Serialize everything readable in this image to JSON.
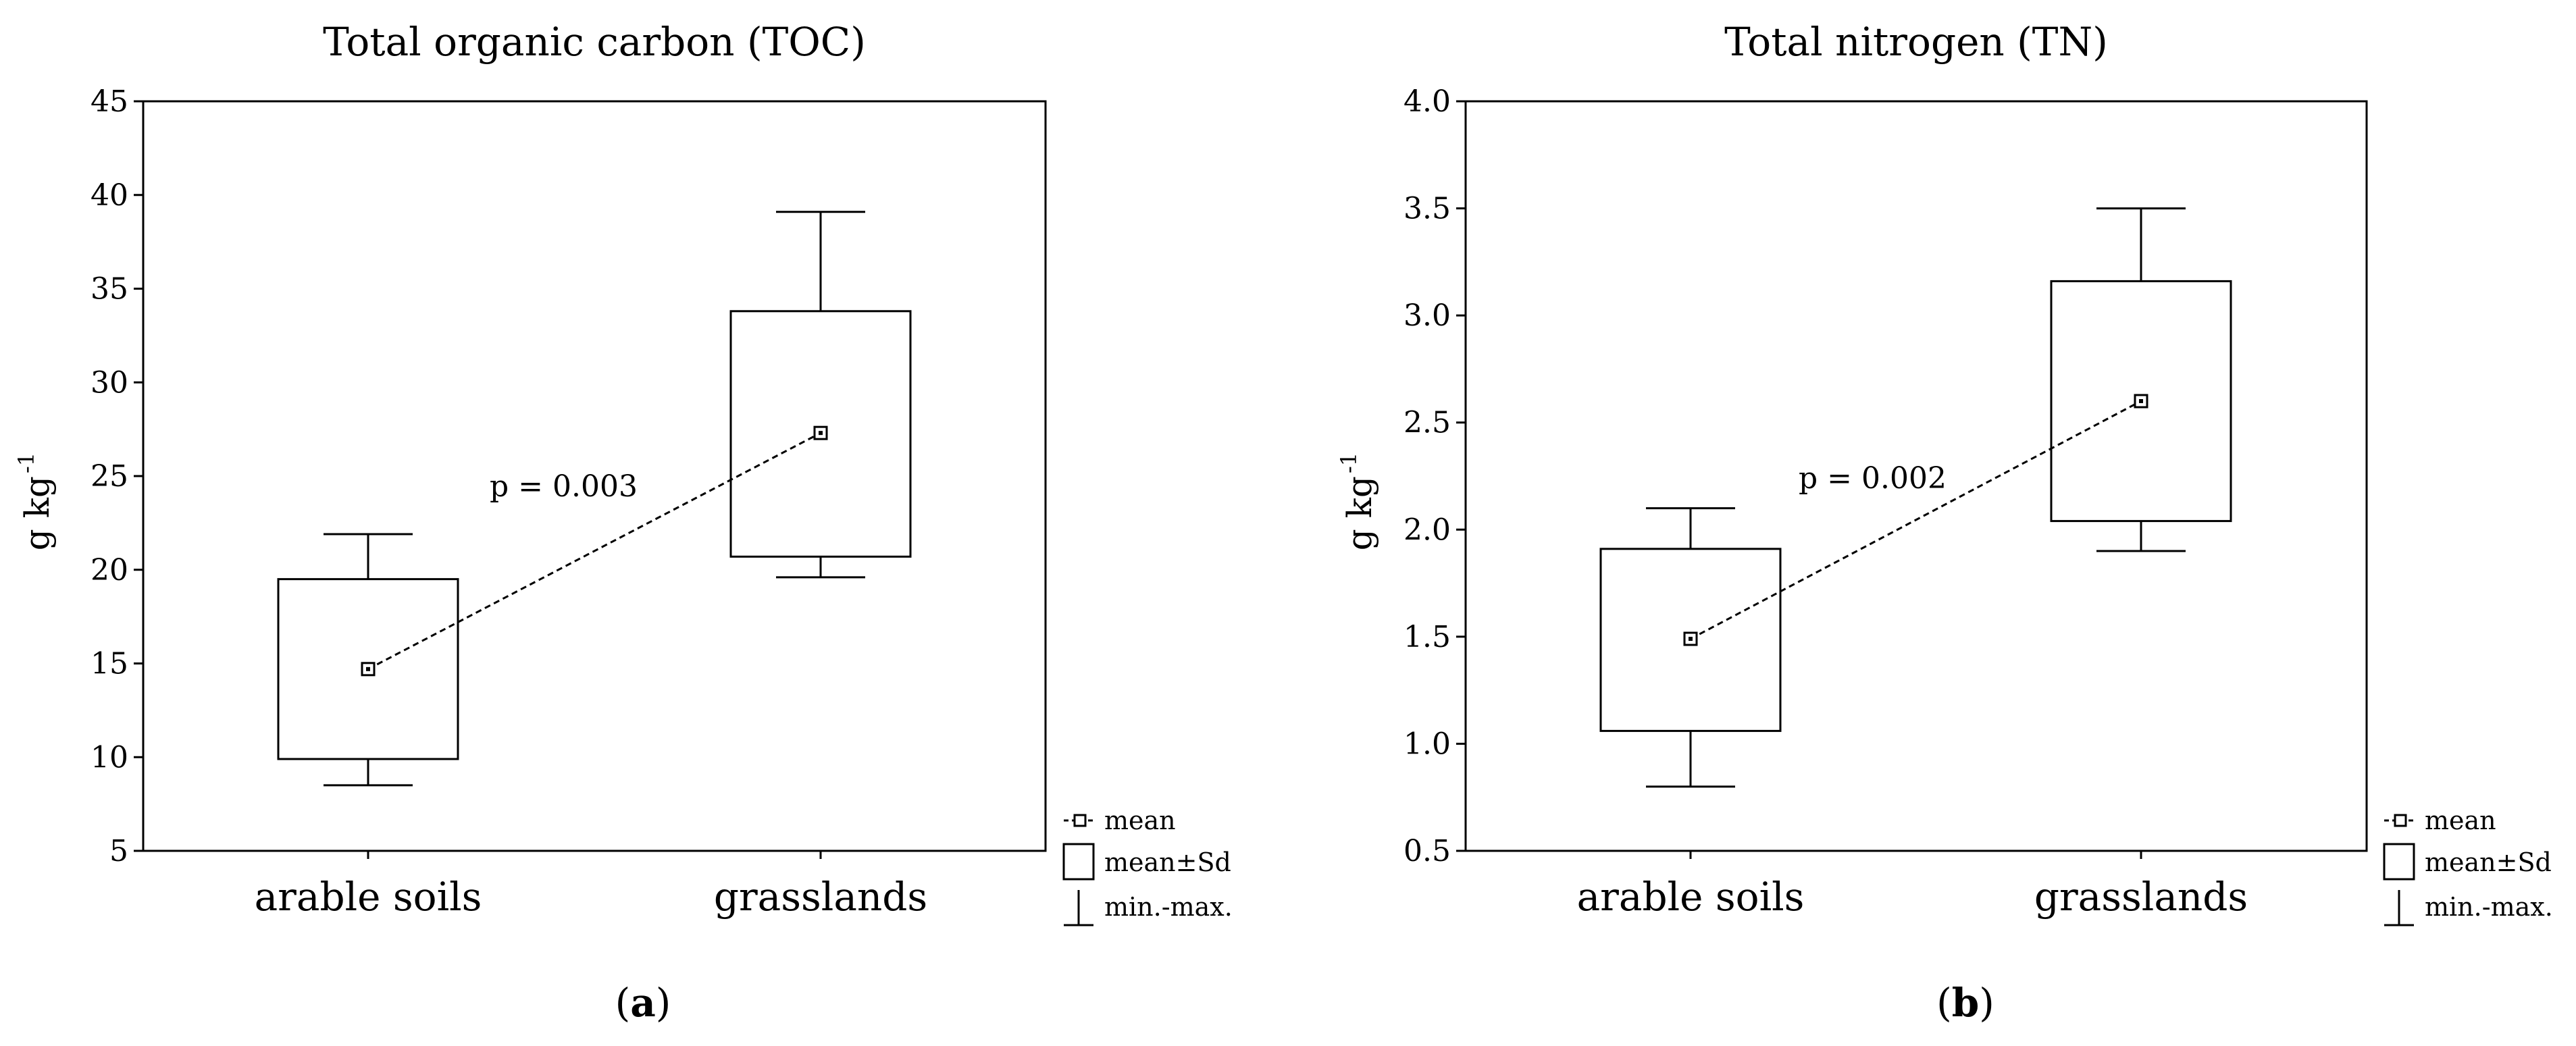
{
  "chart_data": [
    {
      "type": "box",
      "panel_label": "a",
      "title": "Total organic carbon (TOC)",
      "ylabel": "g kg",
      "ylabel_superscript": "-1",
      "ylim": [
        5,
        45
      ],
      "yticks": [
        "5",
        "10",
        "15",
        "20",
        "25",
        "30",
        "35",
        "40",
        "45"
      ],
      "categories": [
        "arable soils",
        "grasslands"
      ],
      "boxes": [
        {
          "category": "arable soils",
          "min": 8.5,
          "mean_minus_sd": 9.9,
          "mean": 14.7,
          "mean_plus_sd": 19.5,
          "max": 21.9
        },
        {
          "category": "grasslands",
          "min": 19.6,
          "mean_minus_sd": 20.7,
          "mean": 27.3,
          "mean_plus_sd": 33.8,
          "max": 39.1
        }
      ],
      "annotation": "p = 0.003",
      "legend": [
        "mean",
        "mean±Sd",
        "min.-max."
      ],
      "grid": false,
      "legend_position": "bottom-right"
    },
    {
      "type": "box",
      "panel_label": "b",
      "title": "Total nitrogen (TN)",
      "ylabel": "g kg",
      "ylabel_superscript": "-1",
      "ylim": [
        0.5,
        4.0
      ],
      "yticks": [
        "0.5",
        "1.0",
        "1.5",
        "2.0",
        "2.5",
        "3.0",
        "3.5",
        "4.0"
      ],
      "categories": [
        "arable soils",
        "grasslands"
      ],
      "boxes": [
        {
          "category": "arable soils",
          "min": 0.8,
          "mean_minus_sd": 1.06,
          "mean": 1.49,
          "mean_plus_sd": 1.91,
          "max": 2.1
        },
        {
          "category": "grasslands",
          "min": 1.9,
          "mean_minus_sd": 2.04,
          "mean": 2.6,
          "mean_plus_sd": 3.16,
          "max": 3.5
        }
      ],
      "annotation": "p = 0.002",
      "legend": [
        "mean",
        "mean±Sd",
        "min.-max."
      ],
      "grid": false,
      "legend_position": "bottom-right"
    }
  ]
}
